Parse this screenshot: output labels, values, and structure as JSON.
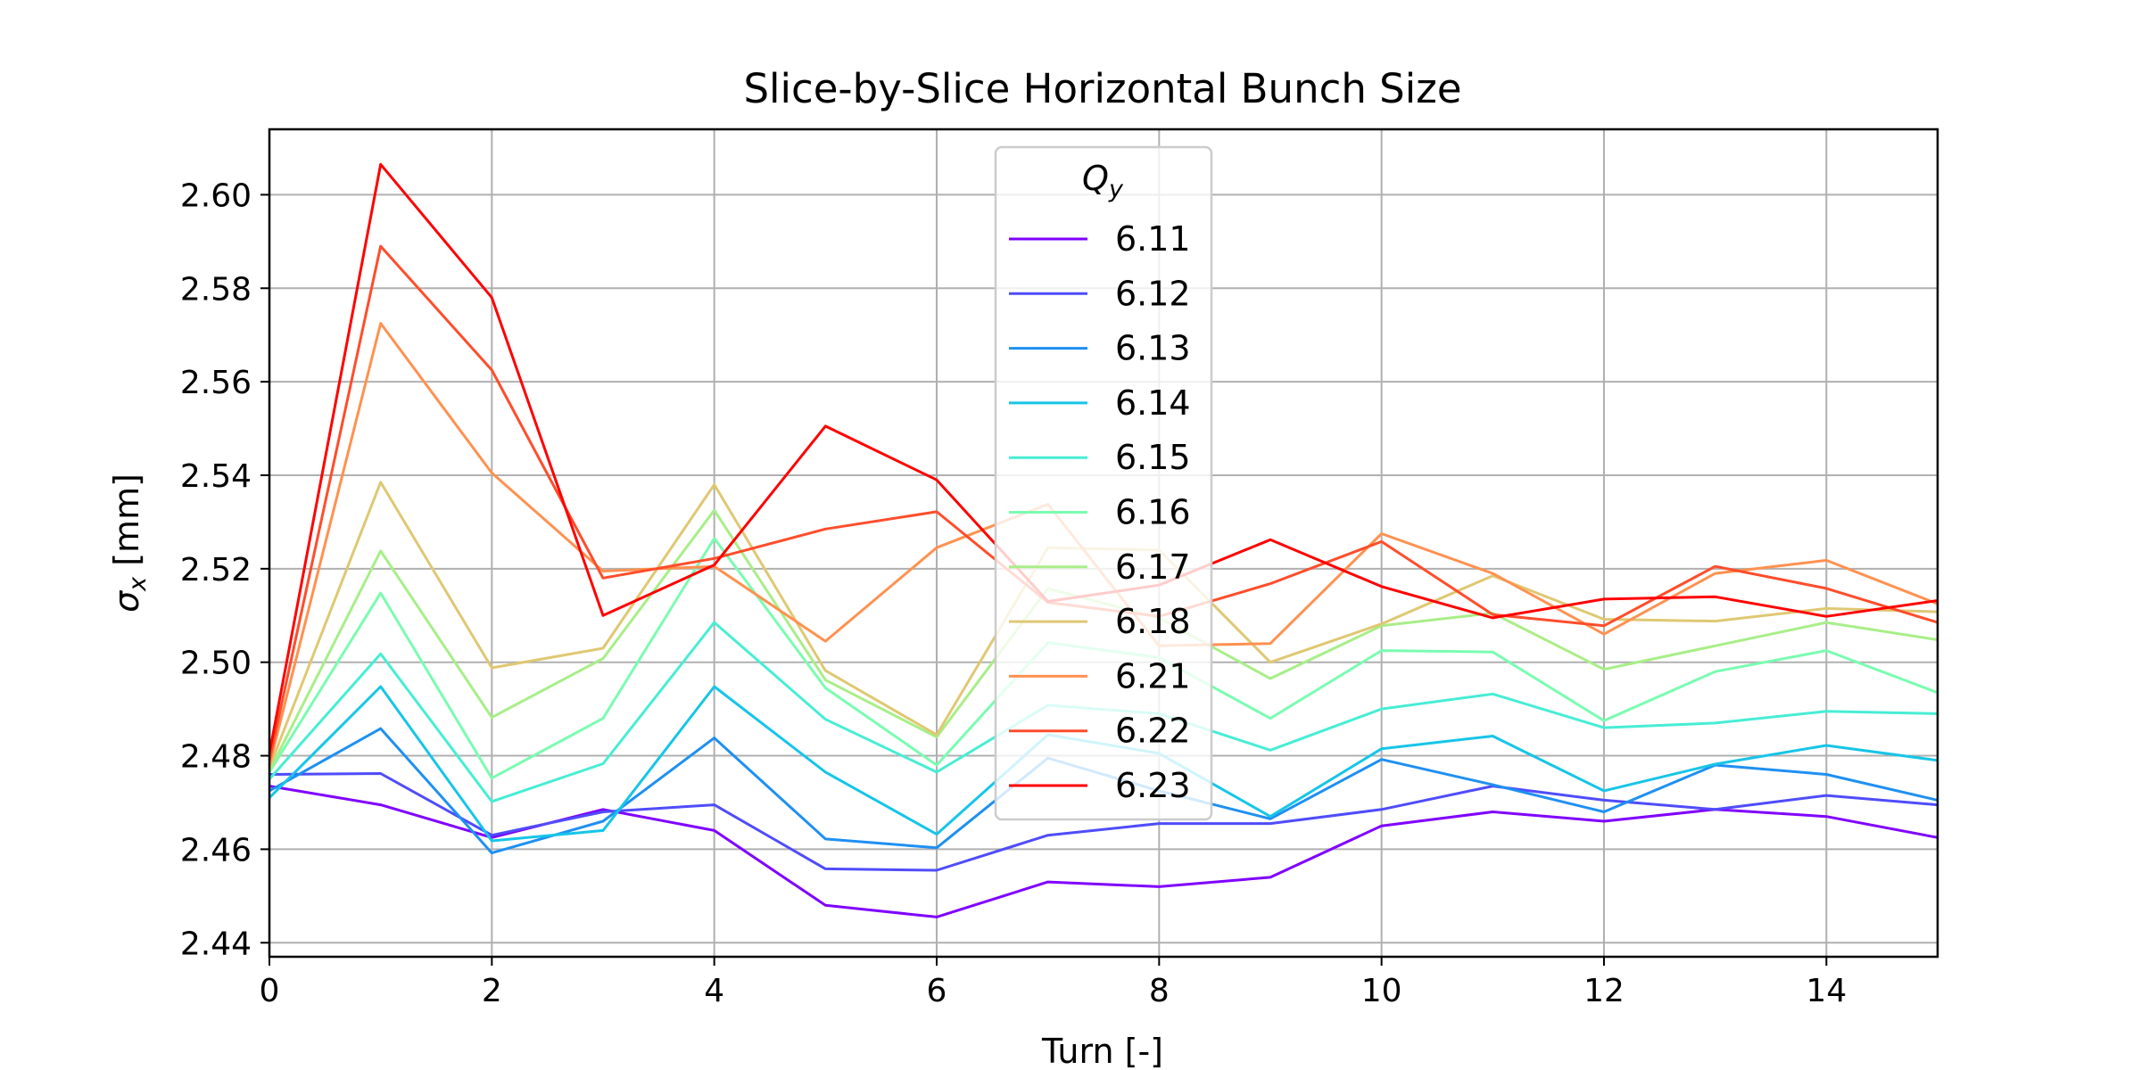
{
  "chart_data": {
    "type": "line",
    "title": "Slice-by-Slice Horizontal Bunch Size",
    "xlabel": "Turn [-]",
    "ylabel_symbol": "σ",
    "ylabel_sub": "x",
    "ylabel_unit": " [mm]",
    "xlim": [
      0,
      15
    ],
    "ylim": [
      2.437,
      2.614
    ],
    "xticks": [
      0,
      2,
      4,
      6,
      8,
      10,
      12,
      14
    ],
    "yticks": [
      2.44,
      2.46,
      2.48,
      2.5,
      2.52,
      2.54,
      2.56,
      2.58,
      2.6
    ],
    "ytick_labels": [
      "2.44",
      "2.46",
      "2.48",
      "2.50",
      "2.52",
      "2.54",
      "2.56",
      "2.58",
      "2.60"
    ],
    "grid": true,
    "legend": {
      "title_symbol": "Q",
      "title_sub": "y",
      "placement": "upper-center"
    },
    "x": [
      0,
      1,
      2,
      3,
      4,
      5,
      6,
      7,
      8,
      9,
      10,
      11,
      12,
      13,
      14,
      15
    ],
    "series": [
      {
        "name": "6.11",
        "color": "#8000ff",
        "values": [
          2.4735,
          2.4695,
          2.4625,
          2.4685,
          2.464,
          2.448,
          2.4455,
          2.453,
          2.452,
          2.454,
          2.465,
          2.468,
          2.466,
          2.4685,
          2.467,
          2.4625
        ]
      },
      {
        "name": "6.12",
        "color": "#4f4cfb",
        "values": [
          2.476,
          2.4762,
          2.463,
          2.468,
          2.4695,
          2.4558,
          2.4555,
          2.463,
          2.4655,
          2.4655,
          2.4685,
          2.4735,
          2.4705,
          2.4685,
          2.4715,
          2.4695
        ]
      },
      {
        "name": "6.13",
        "color": "#1e90f2",
        "values": [
          2.4725,
          2.4858,
          2.4592,
          2.466,
          2.4838,
          2.4622,
          2.4603,
          2.4795,
          2.4725,
          2.4665,
          2.4792,
          2.4738,
          2.468,
          2.478,
          2.476,
          2.4705
        ]
      },
      {
        "name": "6.14",
        "color": "#16c5e8",
        "values": [
          2.471,
          2.4948,
          2.4618,
          2.464,
          2.4948,
          2.4765,
          2.4632,
          2.4845,
          2.4805,
          2.467,
          2.4815,
          2.4842,
          2.4725,
          2.4782,
          2.4822,
          2.479
        ]
      },
      {
        "name": "6.15",
        "color": "#47edd4",
        "values": [
          2.475,
          2.5018,
          2.4702,
          2.4783,
          2.5085,
          2.4878,
          2.4765,
          2.4908,
          2.489,
          2.4812,
          2.49,
          2.4932,
          2.486,
          2.487,
          2.4895,
          2.489
        ]
      },
      {
        "name": "6.16",
        "color": "#7afcb1",
        "values": [
          2.4765,
          2.5148,
          2.4752,
          2.488,
          2.5265,
          2.4945,
          2.478,
          2.5042,
          2.501,
          2.488,
          2.5025,
          2.5022,
          2.4875,
          2.498,
          2.5025,
          2.4935
        ]
      },
      {
        "name": "6.17",
        "color": "#a8ee88",
        "values": [
          2.4768,
          2.5238,
          2.4882,
          2.5008,
          2.5325,
          2.4962,
          2.484,
          2.5158,
          2.5095,
          2.4965,
          2.5078,
          2.5105,
          2.4985,
          2.5035,
          2.5085,
          2.5048
        ]
      },
      {
        "name": "6.18",
        "color": "#dfc872",
        "values": [
          2.4775,
          2.5385,
          2.4988,
          2.503,
          2.538,
          2.4982,
          2.4845,
          2.5245,
          2.524,
          2.5,
          2.5082,
          2.5185,
          2.5092,
          2.5088,
          2.5115,
          2.5108
        ]
      },
      {
        "name": "6.21",
        "color": "#ff9150",
        "values": [
          2.478,
          2.5725,
          2.5405,
          2.5195,
          2.5205,
          2.5045,
          2.5245,
          2.5338,
          2.5035,
          2.504,
          2.5275,
          2.519,
          2.506,
          2.519,
          2.5218,
          2.5125
        ]
      },
      {
        "name": "6.22",
        "color": "#ff4d2b",
        "values": [
          2.479,
          2.589,
          2.5625,
          2.518,
          2.5222,
          2.5285,
          2.5322,
          2.5128,
          2.5098,
          2.5168,
          2.5258,
          2.5102,
          2.5078,
          2.5205,
          2.5158,
          2.5085
        ]
      },
      {
        "name": "6.23",
        "color": "#ff0000",
        "values": [
          2.4805,
          2.6065,
          2.578,
          2.51,
          2.5208,
          2.5505,
          2.539,
          2.513,
          2.5165,
          2.5262,
          2.5162,
          2.5095,
          2.5135,
          2.514,
          2.5098,
          2.5132
        ]
      }
    ]
  }
}
